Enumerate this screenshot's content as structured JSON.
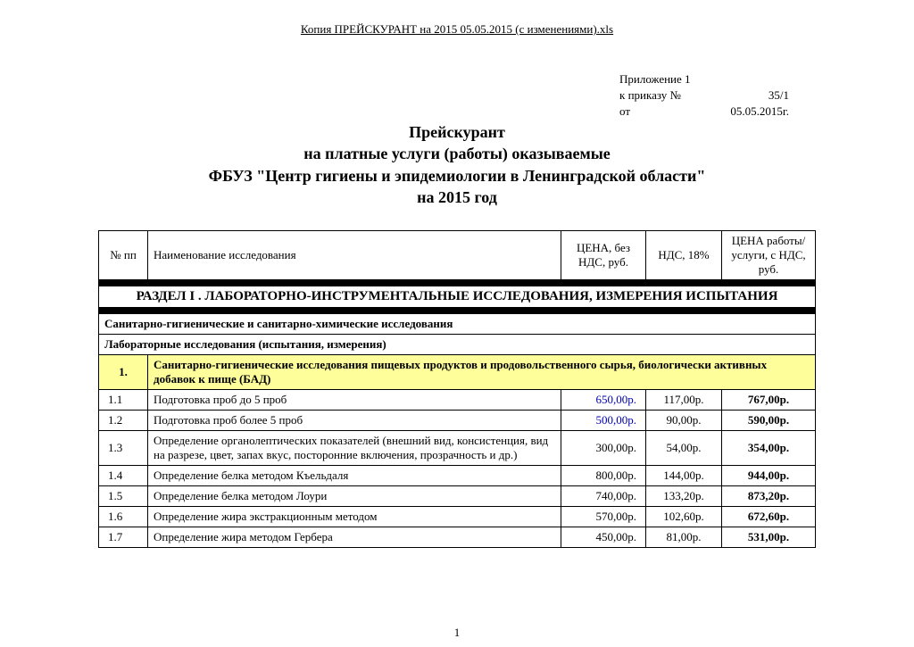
{
  "doc_path": "Копия ПРЕЙСКУРАНТ  на 2015 05.05.2015 (с изменениями).xls",
  "appendix": {
    "line1": "Приложение 1",
    "line2_label": "к приказу №",
    "line2_value": "35/1",
    "line3_label": "от",
    "line3_value": "05.05.2015г."
  },
  "title": {
    "l1": "Прейскурант",
    "l2": "на  платные услуги (работы) оказываемые",
    "l3": "ФБУЗ \"Центр гигиены и эпидемиологии в Ленинградской области\"",
    "l4": "на 2015 год"
  },
  "headers": {
    "num": "№ пп",
    "name": "Наименование исследования",
    "price1": "ЦЕНА, без НДС, руб.",
    "price2": "НДС, 18%",
    "price3": "ЦЕНА работы/услуги, с НДС, руб."
  },
  "section1_title": "РАЗДЕЛ  I .   ЛАБОРАТОРНО-ИНСТРУМЕНТАЛЬНЫЕ ИССЛЕДОВАНИЯ, ИЗМЕРЕНИЯ ИСПЫТАНИЯ",
  "sub_header1": "Санитарно-гигиенические и санитарно-химические исследования",
  "sub_header2": "Лабораторные исследования (испытания, измерения)",
  "group1": {
    "num": "1.",
    "name": "Санитарно-гигиенические исследования пищевых продуктов  и продовольственного сырья, биологически активных добавок к пище (БАД)"
  },
  "rows": [
    {
      "num": "1.1",
      "name": "Подготовка проб до 5 проб",
      "p1": "650,00р.",
      "p2": "117,00р.",
      "p3": "767,00р.",
      "blue": true
    },
    {
      "num": "1.2",
      "name": "Подготовка проб более 5 проб",
      "p1": "500,00р.",
      "p2": "90,00р.",
      "p3": "590,00р.",
      "blue": true
    },
    {
      "num": "1.3",
      "name": "Определение органолептических показателей (внешний вид, консистенция, вид на разрезе, цвет, запах вкус, посторонние включения, прозрачность и др.)",
      "p1": "300,00р.",
      "p2": "54,00р.",
      "p3": "354,00р.",
      "blue": false
    },
    {
      "num": "1.4",
      "name": "Определение белка методом Къельдаля",
      "p1": "800,00р.",
      "p2": "144,00р.",
      "p3": "944,00р.",
      "blue": false
    },
    {
      "num": "1.5",
      "name": "Определение белка методом Лоури",
      "p1": "740,00р.",
      "p2": "133,20р.",
      "p3": "873,20р.",
      "blue": false
    },
    {
      "num": "1.6",
      "name": "Определение жира экстракционным методом",
      "p1": "570,00р.",
      "p2": "102,60р.",
      "p3": "672,60р.",
      "blue": false
    },
    {
      "num": "1.7",
      "name": "Определение жира методом Гербера",
      "p1": "450,00р.",
      "p2": "81,00р.",
      "p3": "531,00р.",
      "blue": false
    }
  ],
  "page_number": "1",
  "colors": {
    "highlight": "#feff9a",
    "blue_price": "#0000b0",
    "border": "#000000",
    "background": "#ffffff"
  }
}
